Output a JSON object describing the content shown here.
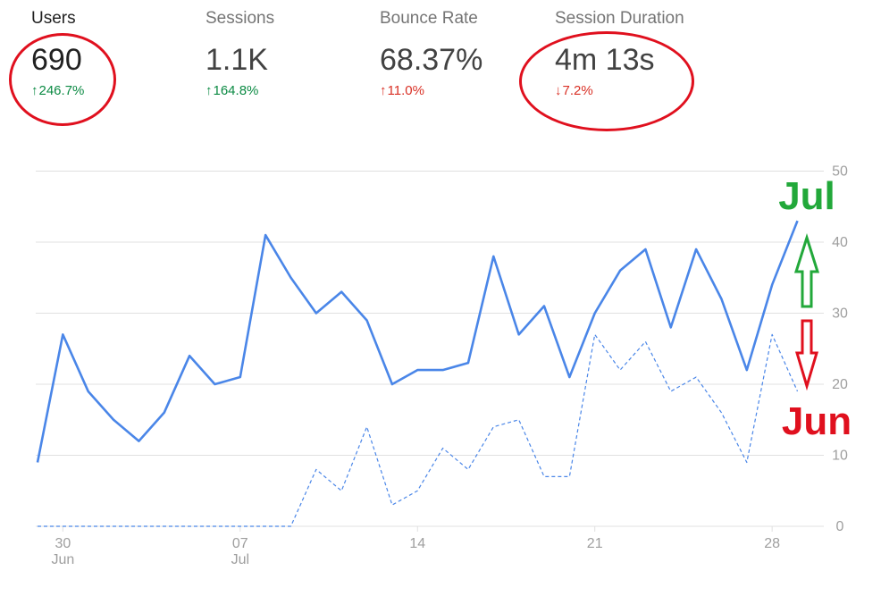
{
  "metrics": [
    {
      "label": "Users",
      "value": "690",
      "change": "246.7%",
      "direction": "up",
      "active": true
    },
    {
      "label": "Sessions",
      "value": "1.1K",
      "change": "164.8%",
      "direction": "up",
      "active": false
    },
    {
      "label": "Bounce Rate",
      "value": "68.37%",
      "change": "11.0%",
      "direction": "up",
      "active": false
    },
    {
      "label": "Session Duration",
      "value": "4m 13s",
      "change": "7.2%",
      "direction": "down",
      "active": false
    }
  ],
  "annotations": {
    "upper_label": "Jul",
    "upper_color": "#22a83a",
    "lower_label": "Jun",
    "lower_color": "#e0101e",
    "highlight_color": "#e0101e"
  },
  "colors": {
    "current": "#4a86e8",
    "previous": "#4a86e8",
    "grid": "#e0e0e0",
    "tick": "#9e9e9e",
    "positive": "#0b8a43",
    "negative": "#d93025"
  },
  "chart_data": {
    "type": "line",
    "x_ticks": [
      {
        "index": 1,
        "day": "30",
        "month": "Jun"
      },
      {
        "index": 8,
        "day": "07",
        "month": "Jul"
      },
      {
        "index": 15,
        "day": "14",
        "month": ""
      },
      {
        "index": 22,
        "day": "21",
        "month": ""
      },
      {
        "index": 29,
        "day": "28",
        "month": ""
      }
    ],
    "ylim": [
      0,
      50
    ],
    "y_ticks": [
      0,
      10,
      20,
      30,
      40,
      50
    ],
    "y_axis_side": "right",
    "grid": true,
    "series": [
      {
        "style": "solid",
        "values": [
          9,
          27,
          19,
          15,
          12,
          16,
          24,
          20,
          21,
          41,
          35,
          30,
          33,
          29,
          20,
          22,
          22,
          23,
          38,
          27,
          31,
          21,
          30,
          36,
          39,
          28,
          39,
          32,
          22,
          34,
          43
        ]
      },
      {
        "style": "dashed",
        "values": [
          0,
          0,
          0,
          0,
          0,
          0,
          0,
          0,
          0,
          0,
          0,
          8,
          5,
          14,
          3,
          5,
          11,
          8,
          14,
          15,
          7,
          7,
          27,
          22,
          26,
          19,
          21,
          16,
          9,
          27,
          19
        ]
      }
    ]
  }
}
